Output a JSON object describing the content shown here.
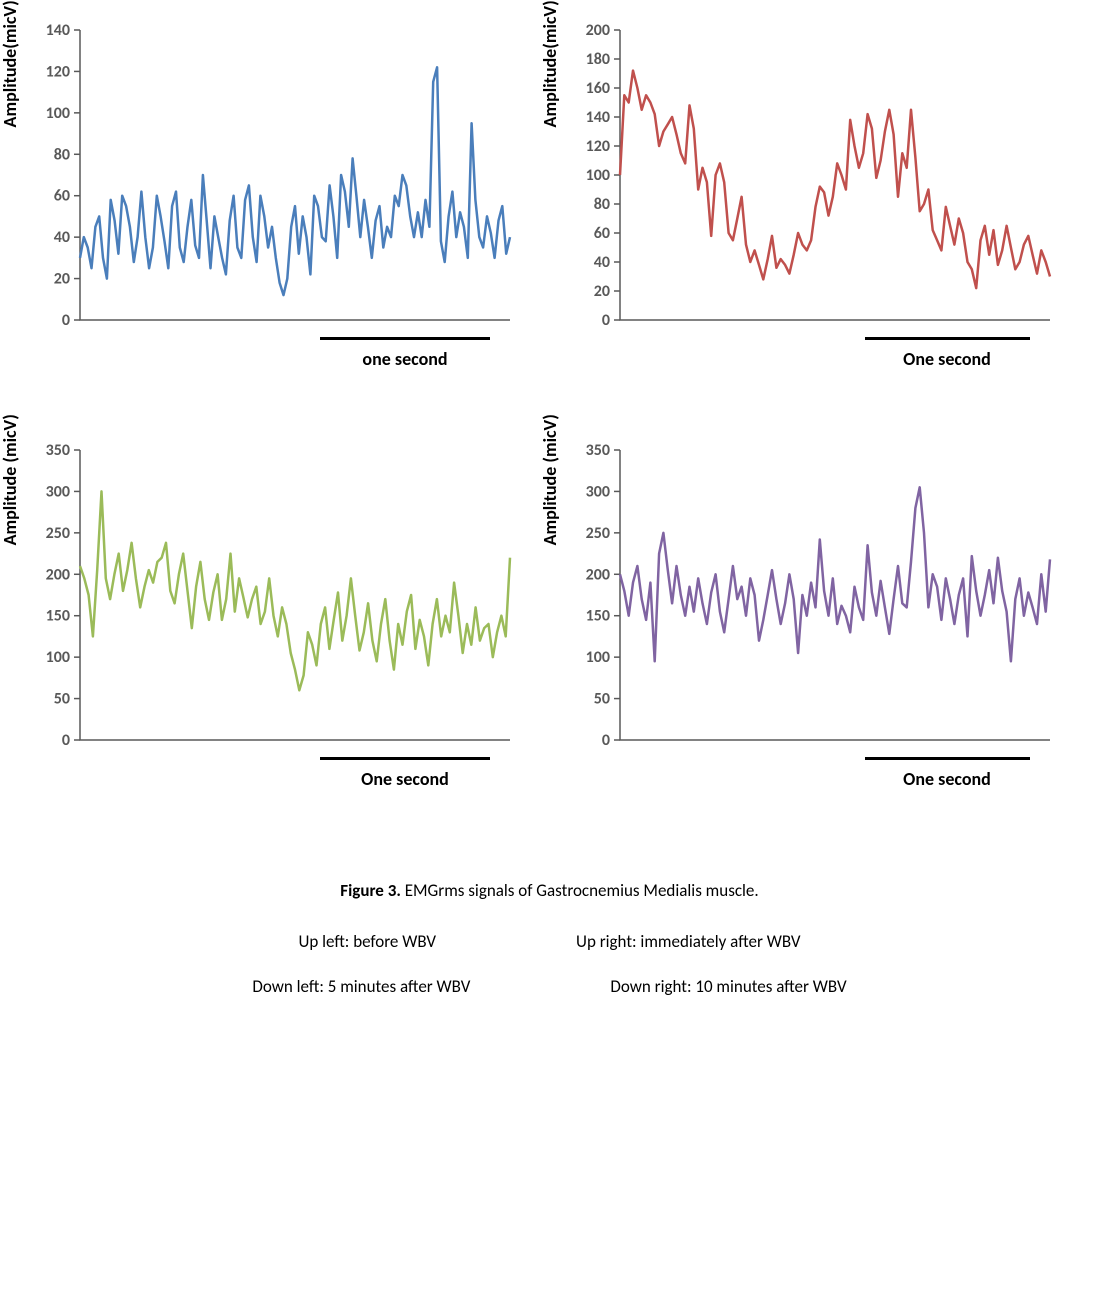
{
  "background_color": "#ffffff",
  "axis_color": "#595959",
  "tick_label_color": "#595959",
  "tick_label_fontsize": 16,
  "tick_label_fontweight": "bold",
  "axis_label_fontsize": 18,
  "axis_label_fontweight": "bold",
  "line_width": 2.5,
  "scalebar_label_fontsize": 18,
  "caption": {
    "title_prefix": "Figure 3.",
    "title_text": " EMGrms signals of Gastrocnemius Medialis muscle.",
    "ul": "Up left: before WBV",
    "ur": "Up right: immediately after WBV",
    "dl": "Down left: 5 minutes after WBV",
    "dr": "Down right: 10 minutes after WBV"
  },
  "panels": [
    {
      "id": "ul",
      "color": "#4a7ebb",
      "ylabel": "Amplitude(micV)",
      "yticks": [
        0,
        20,
        40,
        60,
        80,
        100,
        120,
        140
      ],
      "ylim": [
        0,
        140
      ],
      "scalebar_label": "one second",
      "scalebar_width": 170,
      "values": [
        30,
        40,
        35,
        25,
        45,
        50,
        30,
        20,
        58,
        48,
        32,
        60,
        55,
        45,
        28,
        40,
        62,
        40,
        25,
        35,
        60,
        50,
        38,
        25,
        55,
        62,
        35,
        28,
        45,
        58,
        36,
        30,
        70,
        48,
        25,
        50,
        40,
        30,
        22,
        48,
        60,
        35,
        30,
        58,
        65,
        40,
        28,
        60,
        50,
        35,
        45,
        30,
        18,
        12,
        20,
        45,
        55,
        32,
        50,
        40,
        22,
        60,
        55,
        40,
        38,
        65,
        50,
        30,
        70,
        62,
        45,
        78,
        60,
        40,
        58,
        45,
        30,
        48,
        55,
        35,
        45,
        40,
        60,
        55,
        70,
        65,
        50,
        40,
        52,
        40,
        58,
        45,
        115,
        122,
        38,
        28,
        50,
        62,
        40,
        52,
        45,
        30,
        95,
        58,
        40,
        35,
        50,
        42,
        30,
        48,
        55,
        32,
        40
      ]
    },
    {
      "id": "ur",
      "color": "#c0504d",
      "ylabel": "Amplitude(micV)",
      "yticks": [
        0,
        20,
        40,
        60,
        80,
        100,
        120,
        140,
        160,
        180,
        200
      ],
      "ylim": [
        0,
        200
      ],
      "scalebar_label": "One second",
      "scalebar_width": 165,
      "values": [
        100,
        155,
        150,
        172,
        160,
        145,
        155,
        150,
        142,
        120,
        130,
        135,
        140,
        128,
        115,
        108,
        148,
        132,
        90,
        105,
        95,
        58,
        100,
        108,
        95,
        60,
        55,
        70,
        85,
        52,
        40,
        48,
        38,
        28,
        42,
        58,
        36,
        42,
        38,
        32,
        45,
        60,
        52,
        48,
        55,
        78,
        92,
        88,
        72,
        85,
        108,
        100,
        90,
        138,
        120,
        105,
        115,
        142,
        132,
        98,
        110,
        130,
        145,
        128,
        85,
        115,
        105,
        145,
        112,
        75,
        80,
        90,
        62,
        55,
        48,
        78,
        65,
        52,
        70,
        60,
        40,
        35,
        22,
        55,
        65,
        45,
        62,
        38,
        48,
        65,
        50,
        35,
        40,
        52,
        58,
        45,
        32,
        48,
        40,
        30
      ]
    },
    {
      "id": "dl",
      "color": "#9bbb59",
      "ylabel": "Amplitude (micV)",
      "yticks": [
        0,
        50,
        100,
        150,
        200,
        250,
        300,
        350
      ],
      "ylim": [
        0,
        350
      ],
      "scalebar_label": "One second",
      "scalebar_width": 170,
      "values": [
        210,
        195,
        175,
        125,
        205,
        300,
        195,
        170,
        200,
        225,
        180,
        205,
        238,
        195,
        160,
        185,
        205,
        190,
        215,
        220,
        238,
        180,
        165,
        200,
        225,
        180,
        135,
        185,
        215,
        170,
        145,
        178,
        200,
        145,
        170,
        225,
        155,
        195,
        172,
        148,
        170,
        185,
        140,
        155,
        195,
        150,
        125,
        160,
        140,
        105,
        85,
        60,
        78,
        130,
        115,
        90,
        140,
        160,
        110,
        145,
        178,
        120,
        150,
        195,
        150,
        108,
        130,
        165,
        120,
        95,
        140,
        170,
        120,
        85,
        140,
        115,
        155,
        175,
        110,
        145,
        125,
        90,
        140,
        170,
        125,
        150,
        130,
        190,
        150,
        105,
        140,
        115,
        160,
        120,
        135,
        140,
        100,
        130,
        150,
        125,
        220
      ]
    },
    {
      "id": "dr",
      "color": "#8064a2",
      "ylabel": "Amplitude (micV)",
      "yticks": [
        0,
        50,
        100,
        150,
        200,
        250,
        300,
        350
      ],
      "ylim": [
        0,
        350
      ],
      "scalebar_label": "One second",
      "scalebar_width": 165,
      "values": [
        200,
        180,
        150,
        190,
        210,
        170,
        145,
        190,
        95,
        225,
        250,
        205,
        165,
        210,
        175,
        150,
        185,
        155,
        195,
        165,
        140,
        178,
        200,
        155,
        130,
        170,
        210,
        170,
        185,
        150,
        195,
        175,
        120,
        145,
        175,
        205,
        170,
        140,
        165,
        200,
        170,
        105,
        175,
        150,
        190,
        160,
        242,
        180,
        150,
        195,
        140,
        162,
        150,
        130,
        185,
        160,
        145,
        235,
        178,
        150,
        192,
        160,
        128,
        170,
        210,
        165,
        160,
        215,
        280,
        305,
        250,
        160,
        200,
        185,
        145,
        195,
        170,
        140,
        175,
        195,
        125,
        222,
        180,
        150,
        175,
        205,
        165,
        220,
        180,
        155,
        95,
        170,
        195,
        150,
        178,
        160,
        140,
        200,
        155,
        218
      ]
    }
  ]
}
